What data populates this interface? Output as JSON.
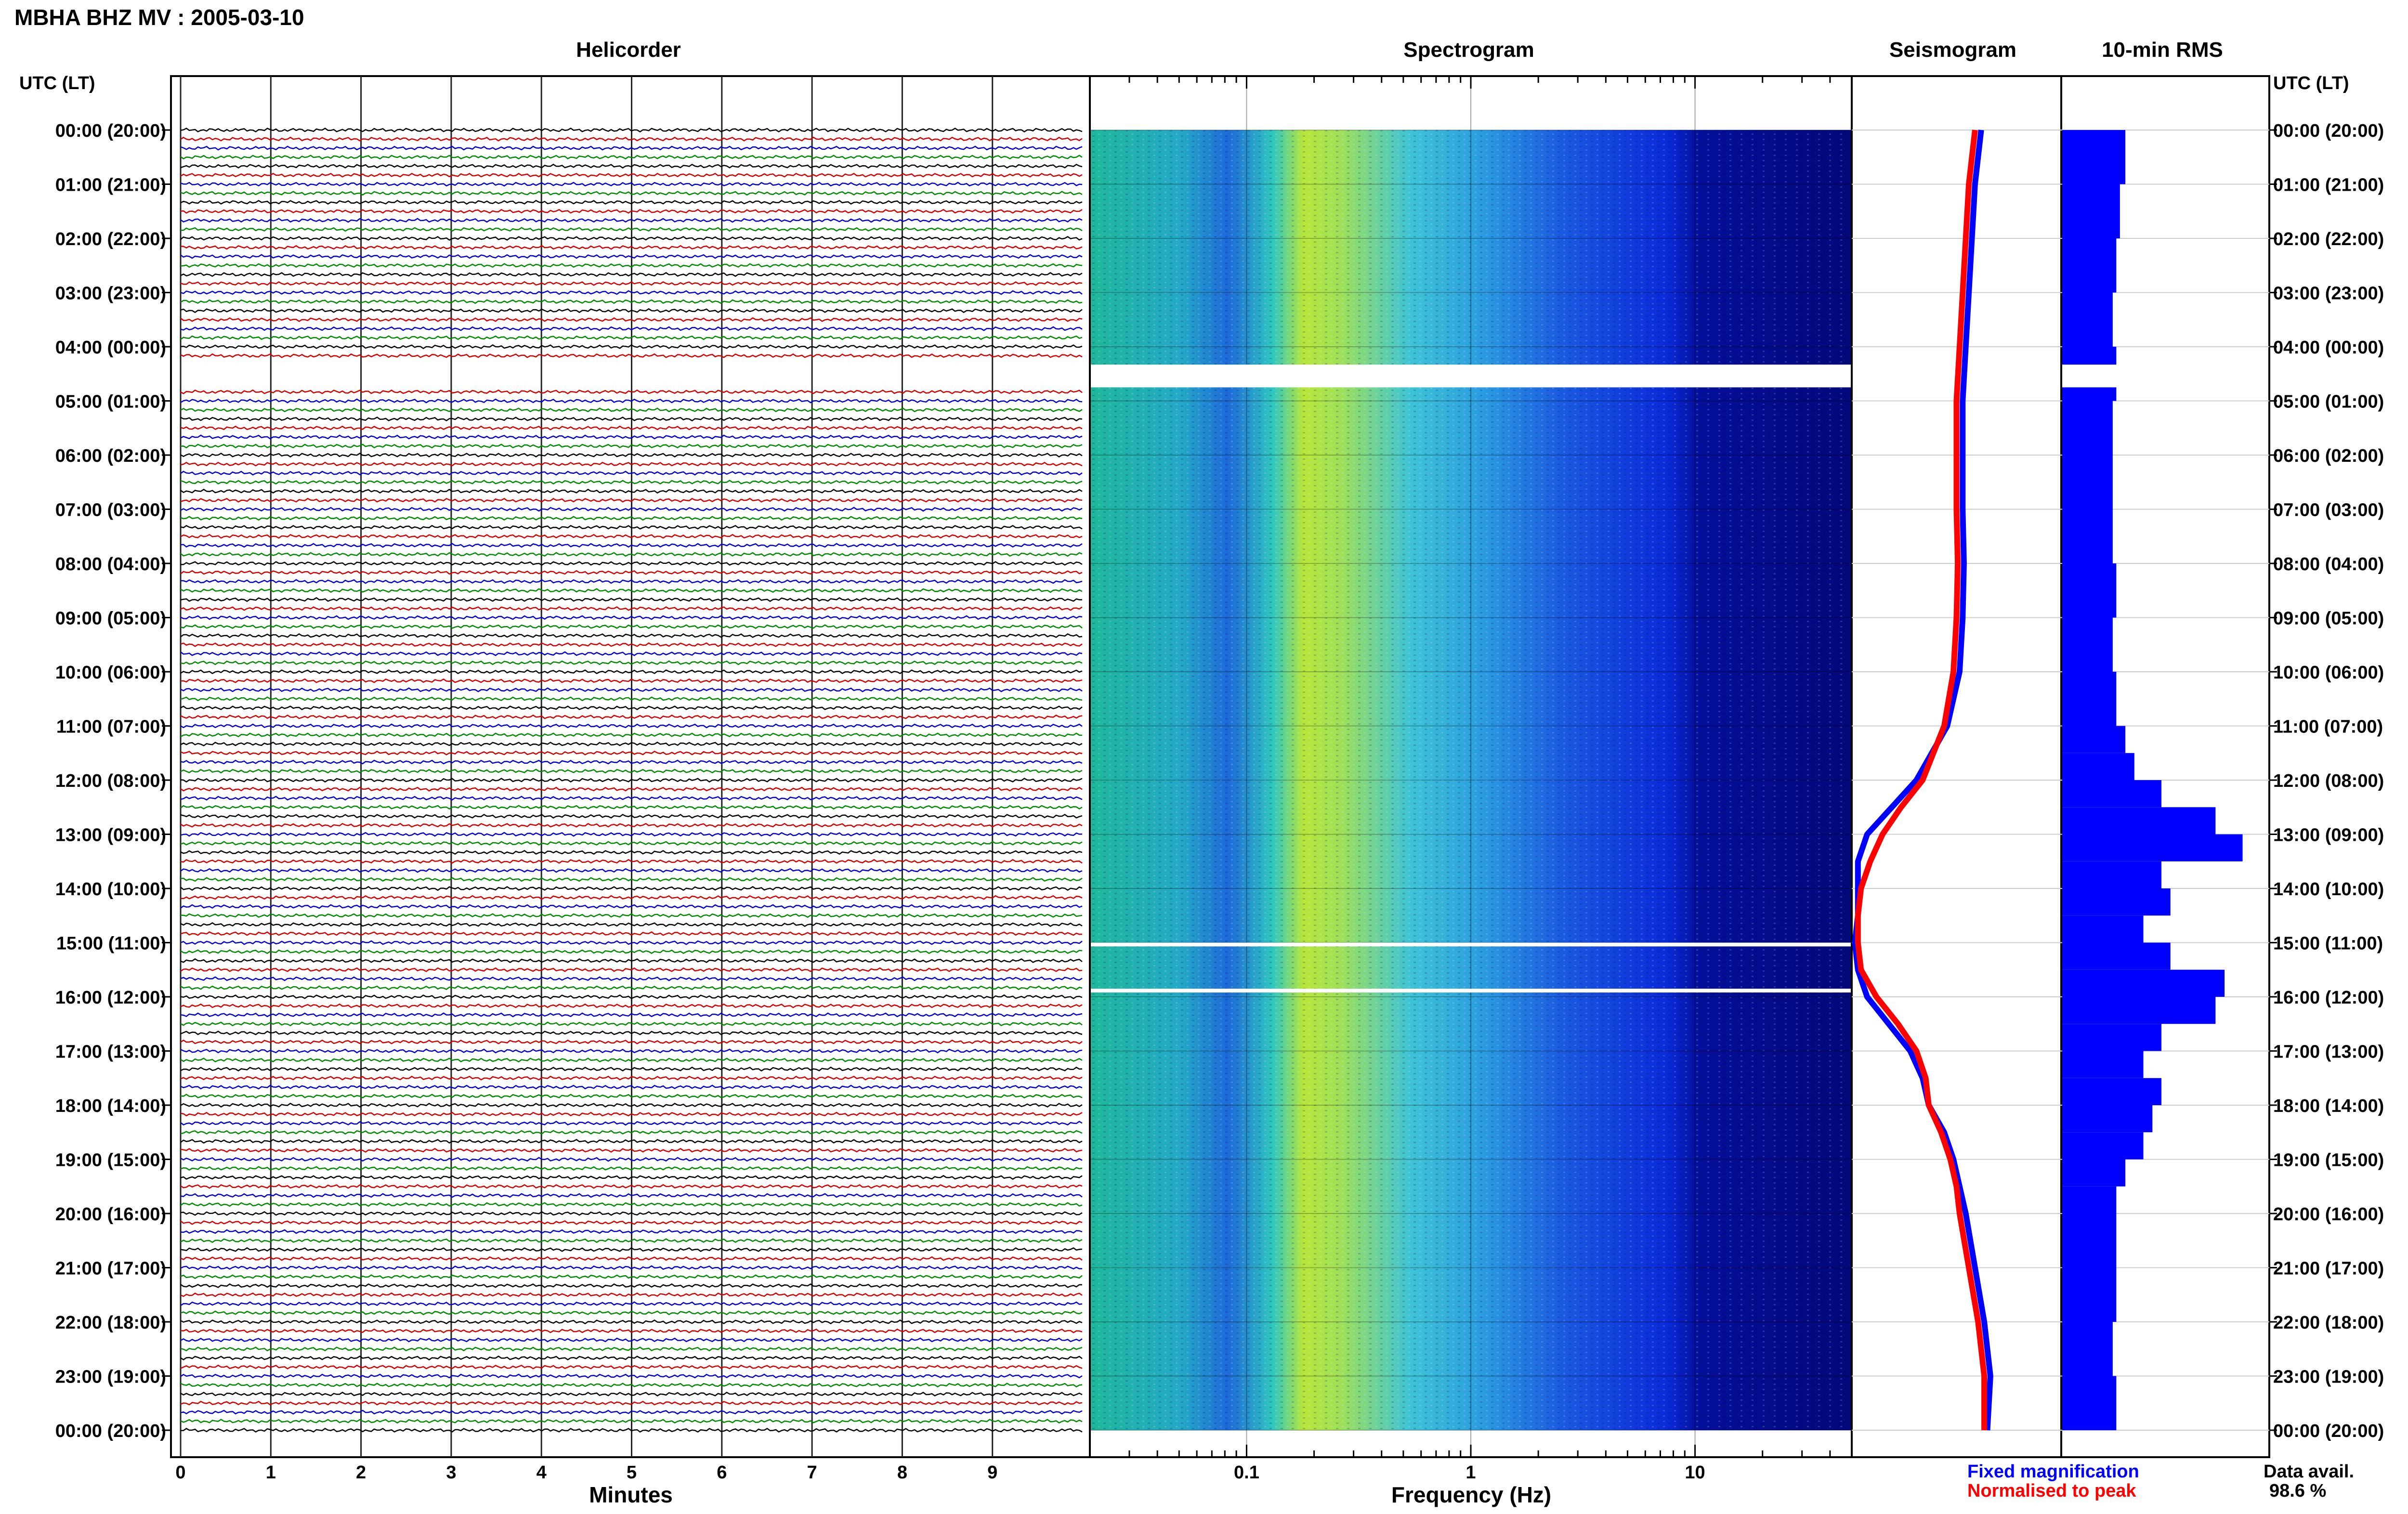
{
  "page_title": "MBHA BHZ MV : 2005-03-10",
  "panels": {
    "helicorder": "Helicorder",
    "spectrogram": "Spectrogram",
    "seismogram": "Seismogram",
    "rms": "10-min RMS"
  },
  "time_axis_title_left": "UTC (LT)",
  "time_axis_title_right": "UTC (LT)",
  "time_labels": [
    "00:00 (20:00)",
    "01:00 (21:00)",
    "02:00 (22:00)",
    "03:00 (23:00)",
    "04:00 (00:00)",
    "05:00 (01:00)",
    "06:00 (02:00)",
    "07:00 (03:00)",
    "08:00 (04:00)",
    "09:00 (05:00)",
    "10:00 (06:00)",
    "11:00 (07:00)",
    "12:00 (08:00)",
    "13:00 (09:00)",
    "14:00 (10:00)",
    "15:00 (11:00)",
    "16:00 (12:00)",
    "17:00 (13:00)",
    "18:00 (14:00)",
    "19:00 (15:00)",
    "20:00 (16:00)",
    "21:00 (17:00)",
    "22:00 (18:00)",
    "23:00 (19:00)",
    "00:00 (20:00)"
  ],
  "helicorder_x": {
    "title": "Minutes",
    "ticks": [
      "0",
      "1",
      "2",
      "3",
      "4",
      "5",
      "6",
      "7",
      "8",
      "9"
    ],
    "trace_colors": [
      "#000000",
      "#d40000",
      "#0000d4",
      "#008a00"
    ],
    "traces_per_hour": 6
  },
  "spectrogram_x": {
    "title": "Frequency (Hz)",
    "ticks": [
      {
        "value": 0.1,
        "label": "0.1"
      },
      {
        "value": 1,
        "label": "1"
      },
      {
        "value": 10,
        "label": "10"
      }
    ],
    "range": [
      0.02,
      50
    ],
    "scale": "log",
    "data_gaps_hours": [
      [
        4.33,
        4.75
      ],
      [
        15.0,
        15.07
      ],
      [
        15.85,
        15.92
      ]
    ]
  },
  "legend": {
    "fixed": "Fixed magnification",
    "normalised": "Normalised to peak",
    "fixed_color": "#0000ff",
    "normalised_color": "#ff0000"
  },
  "data_availability": {
    "label": "Data avail.",
    "value": "98.6 %"
  },
  "chart_data": [
    {
      "type": "line",
      "title": "Seismogram",
      "series": [
        {
          "name": "Fixed magnification",
          "color": "#0000ff",
          "hours": [
            0,
            1,
            2,
            3,
            4,
            5,
            6,
            7,
            8,
            9,
            10,
            11,
            12,
            12.5,
            13,
            13.5,
            14,
            14.5,
            15,
            15.5,
            16,
            16.5,
            17,
            17.5,
            18,
            18.5,
            19,
            19.5,
            20,
            21,
            22,
            23,
            24
          ],
          "values": [
            1.5,
            1.4,
            1.35,
            1.3,
            1.25,
            1.2,
            1.2,
            1.2,
            1.22,
            1.2,
            1.15,
            0.95,
            0.45,
            0.05,
            -0.35,
            -0.5,
            -0.5,
            -0.5,
            -0.55,
            -0.5,
            -0.35,
            0.0,
            0.35,
            0.55,
            0.65,
            0.9,
            1.05,
            1.15,
            1.25,
            1.4,
            1.55,
            1.65,
            1.6
          ]
        },
        {
          "name": "Normalised to peak",
          "color": "#ff0000",
          "hours": [
            0,
            1,
            2,
            3,
            4,
            5,
            6,
            7,
            8,
            9,
            10,
            11,
            12,
            12.5,
            13,
            13.5,
            14,
            14.5,
            15,
            15.5,
            16,
            16.5,
            17,
            17.5,
            18,
            18.5,
            19,
            19.5,
            20,
            21,
            22,
            23,
            24
          ],
          "values": [
            1.4,
            1.3,
            1.25,
            1.2,
            1.15,
            1.1,
            1.1,
            1.1,
            1.12,
            1.1,
            1.05,
            0.9,
            0.55,
            0.2,
            -0.1,
            -0.3,
            -0.45,
            -0.5,
            -0.5,
            -0.45,
            -0.2,
            0.15,
            0.45,
            0.6,
            0.65,
            0.85,
            1.0,
            1.1,
            1.15,
            1.3,
            1.45,
            1.55,
            1.55
          ]
        }
      ]
    },
    {
      "type": "bar",
      "title": "10-min RMS",
      "hours": [
        0,
        1,
        2,
        3,
        4,
        5,
        6,
        7,
        8,
        9,
        10,
        11,
        11.5,
        12,
        12.5,
        13,
        13.5,
        14,
        14.5,
        15,
        15.5,
        16,
        16.5,
        17,
        17.5,
        18,
        18.5,
        19,
        19.5,
        20,
        21,
        22,
        23,
        24
      ],
      "values": [
        0.35,
        0.32,
        0.3,
        0.28,
        0.3,
        0.28,
        0.28,
        0.28,
        0.3,
        0.28,
        0.3,
        0.35,
        0.4,
        0.55,
        0.85,
        1.0,
        0.55,
        0.6,
        0.45,
        0.6,
        0.9,
        0.85,
        0.55,
        0.45,
        0.55,
        0.5,
        0.45,
        0.35,
        0.3,
        0.3,
        0.3,
        0.28,
        0.3,
        0.3
      ],
      "color": "#0000ff",
      "gap_hours": [
        4.33,
        4.75
      ]
    }
  ]
}
